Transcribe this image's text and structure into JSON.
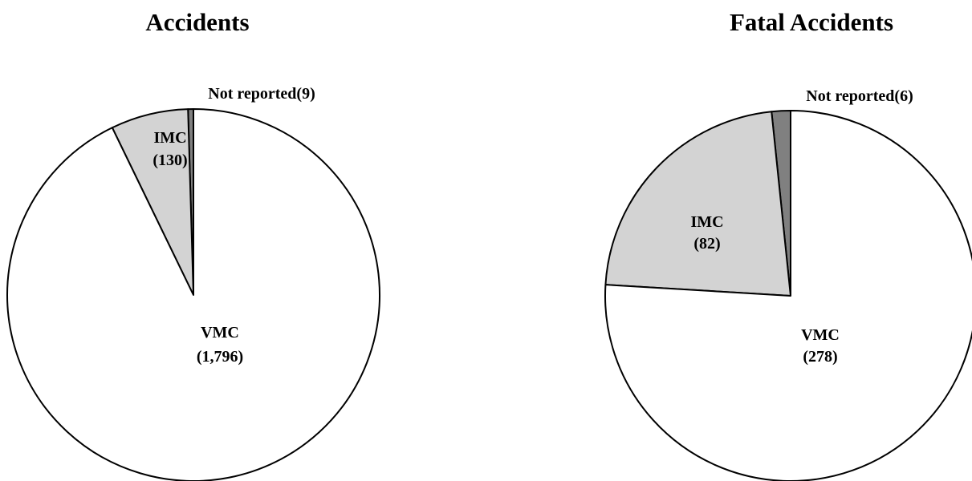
{
  "chart_data": [
    {
      "type": "pie",
      "title": "Accidents",
      "slices": [
        {
          "label": "VMC",
          "value_text": "(1,796)",
          "value": 1796,
          "color": "#ffffff"
        },
        {
          "label": "IMC",
          "value_text": "(130)",
          "value": 130,
          "color": "#d3d3d3"
        },
        {
          "label": "Not reported(9)",
          "value": 9,
          "color": "#808080"
        }
      ]
    },
    {
      "type": "pie",
      "title": "Fatal Accidents",
      "slices": [
        {
          "label": "VMC",
          "value_text": "(278)",
          "value": 278,
          "color": "#ffffff"
        },
        {
          "label": "IMC",
          "value_text": "(82)",
          "value": 82,
          "color": "#d3d3d3"
        },
        {
          "label": "Not reported(6)",
          "value": 6,
          "color": "#808080"
        }
      ]
    }
  ]
}
